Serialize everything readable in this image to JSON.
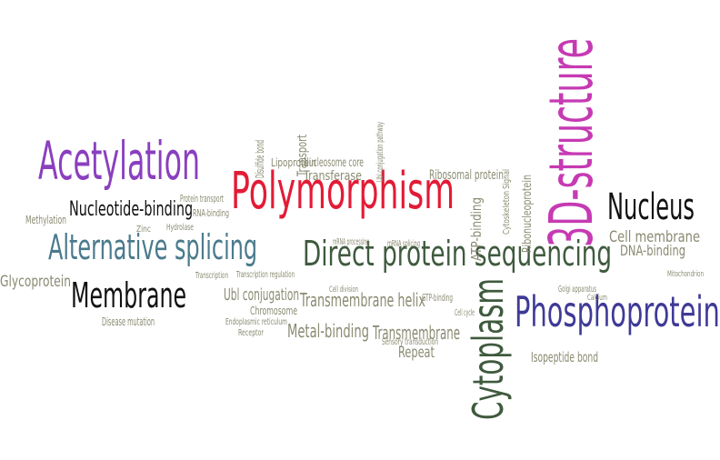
{
  "colors": {
    "purple": "#8a3fbf",
    "red": "#e31b36",
    "magenta": "#c63ab3",
    "black": "#111111",
    "teal": "#4a7a8c",
    "darkgreen": "#3f5a3e",
    "navy": "#3f3a96",
    "gray": "#8a8a72"
  },
  "words": [
    "Acetylation",
    "Polymorphism",
    "3D-structure",
    "Nucleus",
    "Nucleotide-binding",
    "Alternative splicing",
    "Direct protein sequencing",
    "Membrane",
    "Phosphoprotein",
    "Cytoplasm",
    "Glycoprotein",
    "Methylation",
    "Ubl conjugation",
    "Transmembrane helix",
    "Transmembrane",
    "Metal-binding",
    "Repeat",
    "Isopeptide bond",
    "Ribosomal protein",
    "Transferase",
    "Nucleosome core",
    "Transport",
    "Lipoprotein",
    "Disulfide bond",
    "Ubl conjugation pathway",
    "Cell membrane",
    "DNA-binding",
    "ATP-binding",
    "Ribonucleoprotein",
    "Cytoskeleton",
    "Signal",
    "Protein transport",
    "RNA-binding",
    "Zinc",
    "Hydrolase",
    "Disease mutation",
    "Transcription",
    "Transcription regulation",
    "Chromosome",
    "Endoplasmic reticulum",
    "mRNA processing",
    "mRNA splicing",
    "GTP-binding",
    "Cell cycle",
    "Sensory transduction",
    "Receptor",
    "Cell division",
    "Mitochondrion",
    "Golgi apparatus",
    "Calcium"
  ]
}
